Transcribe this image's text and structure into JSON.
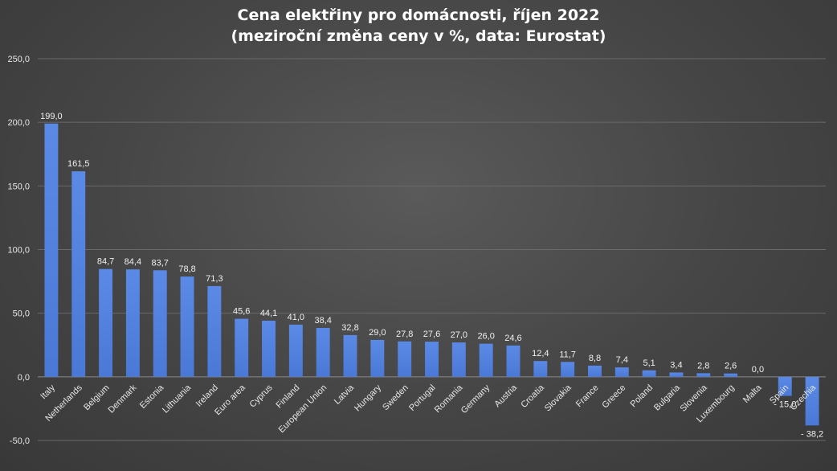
{
  "chart_data": {
    "type": "bar",
    "title": "Cena elektřiny pro domácnosti, říjen 2022",
    "subtitle": "(meziroční změna ceny v %, data: Eurostat)",
    "xlabel": "",
    "ylabel": "",
    "ylim": [
      -50,
      250
    ],
    "yticks": [
      250,
      200,
      150,
      100,
      50,
      0,
      -50
    ],
    "ytick_labels": [
      "250,0",
      "200,0",
      "150,0",
      "100,0",
      "50,0",
      "0,0",
      "-50,0"
    ],
    "grid": true,
    "legend": "none",
    "bar_color": "#4a78d6",
    "categories": [
      "Italy",
      "Netherlands",
      "Belgium",
      "Denmark",
      "Estonia",
      "Lithuania",
      "Ireland",
      "Euro area",
      "Cyprus",
      "Finland",
      "European Union",
      "Latvia",
      "Hungary",
      "Sweden",
      "Portugal",
      "Romania",
      "Germany",
      "Austria",
      "Croatia",
      "Slovakia",
      "France",
      "Greece",
      "Poland",
      "Bulgaria",
      "Slovenia",
      "Luxembourg",
      "Malta",
      "Spain",
      "Czechia"
    ],
    "values": [
      199.0,
      161.5,
      84.7,
      84.4,
      83.7,
      78.8,
      71.3,
      45.6,
      44.1,
      41.0,
      38.4,
      32.8,
      29.0,
      27.8,
      27.6,
      27.0,
      26.0,
      24.6,
      12.4,
      11.7,
      8.8,
      7.4,
      5.1,
      3.4,
      2.8,
      2.6,
      0.0,
      -15.0,
      -38.2
    ],
    "data_labels": [
      "199,0",
      "161,5",
      "84,7",
      "84,4",
      "83,7",
      "78,8",
      "71,3",
      "45,6",
      "44,1",
      "41,0",
      "38,4",
      "32,8",
      "29,0",
      "27,8",
      "27,6",
      "27,0",
      "26,0",
      "24,6",
      "12,4",
      "11,7",
      "8,8",
      "7,4",
      "5,1",
      "3,4",
      "2,8",
      "2,6",
      "0,0",
      "- 15,0",
      "- 38,2"
    ]
  }
}
